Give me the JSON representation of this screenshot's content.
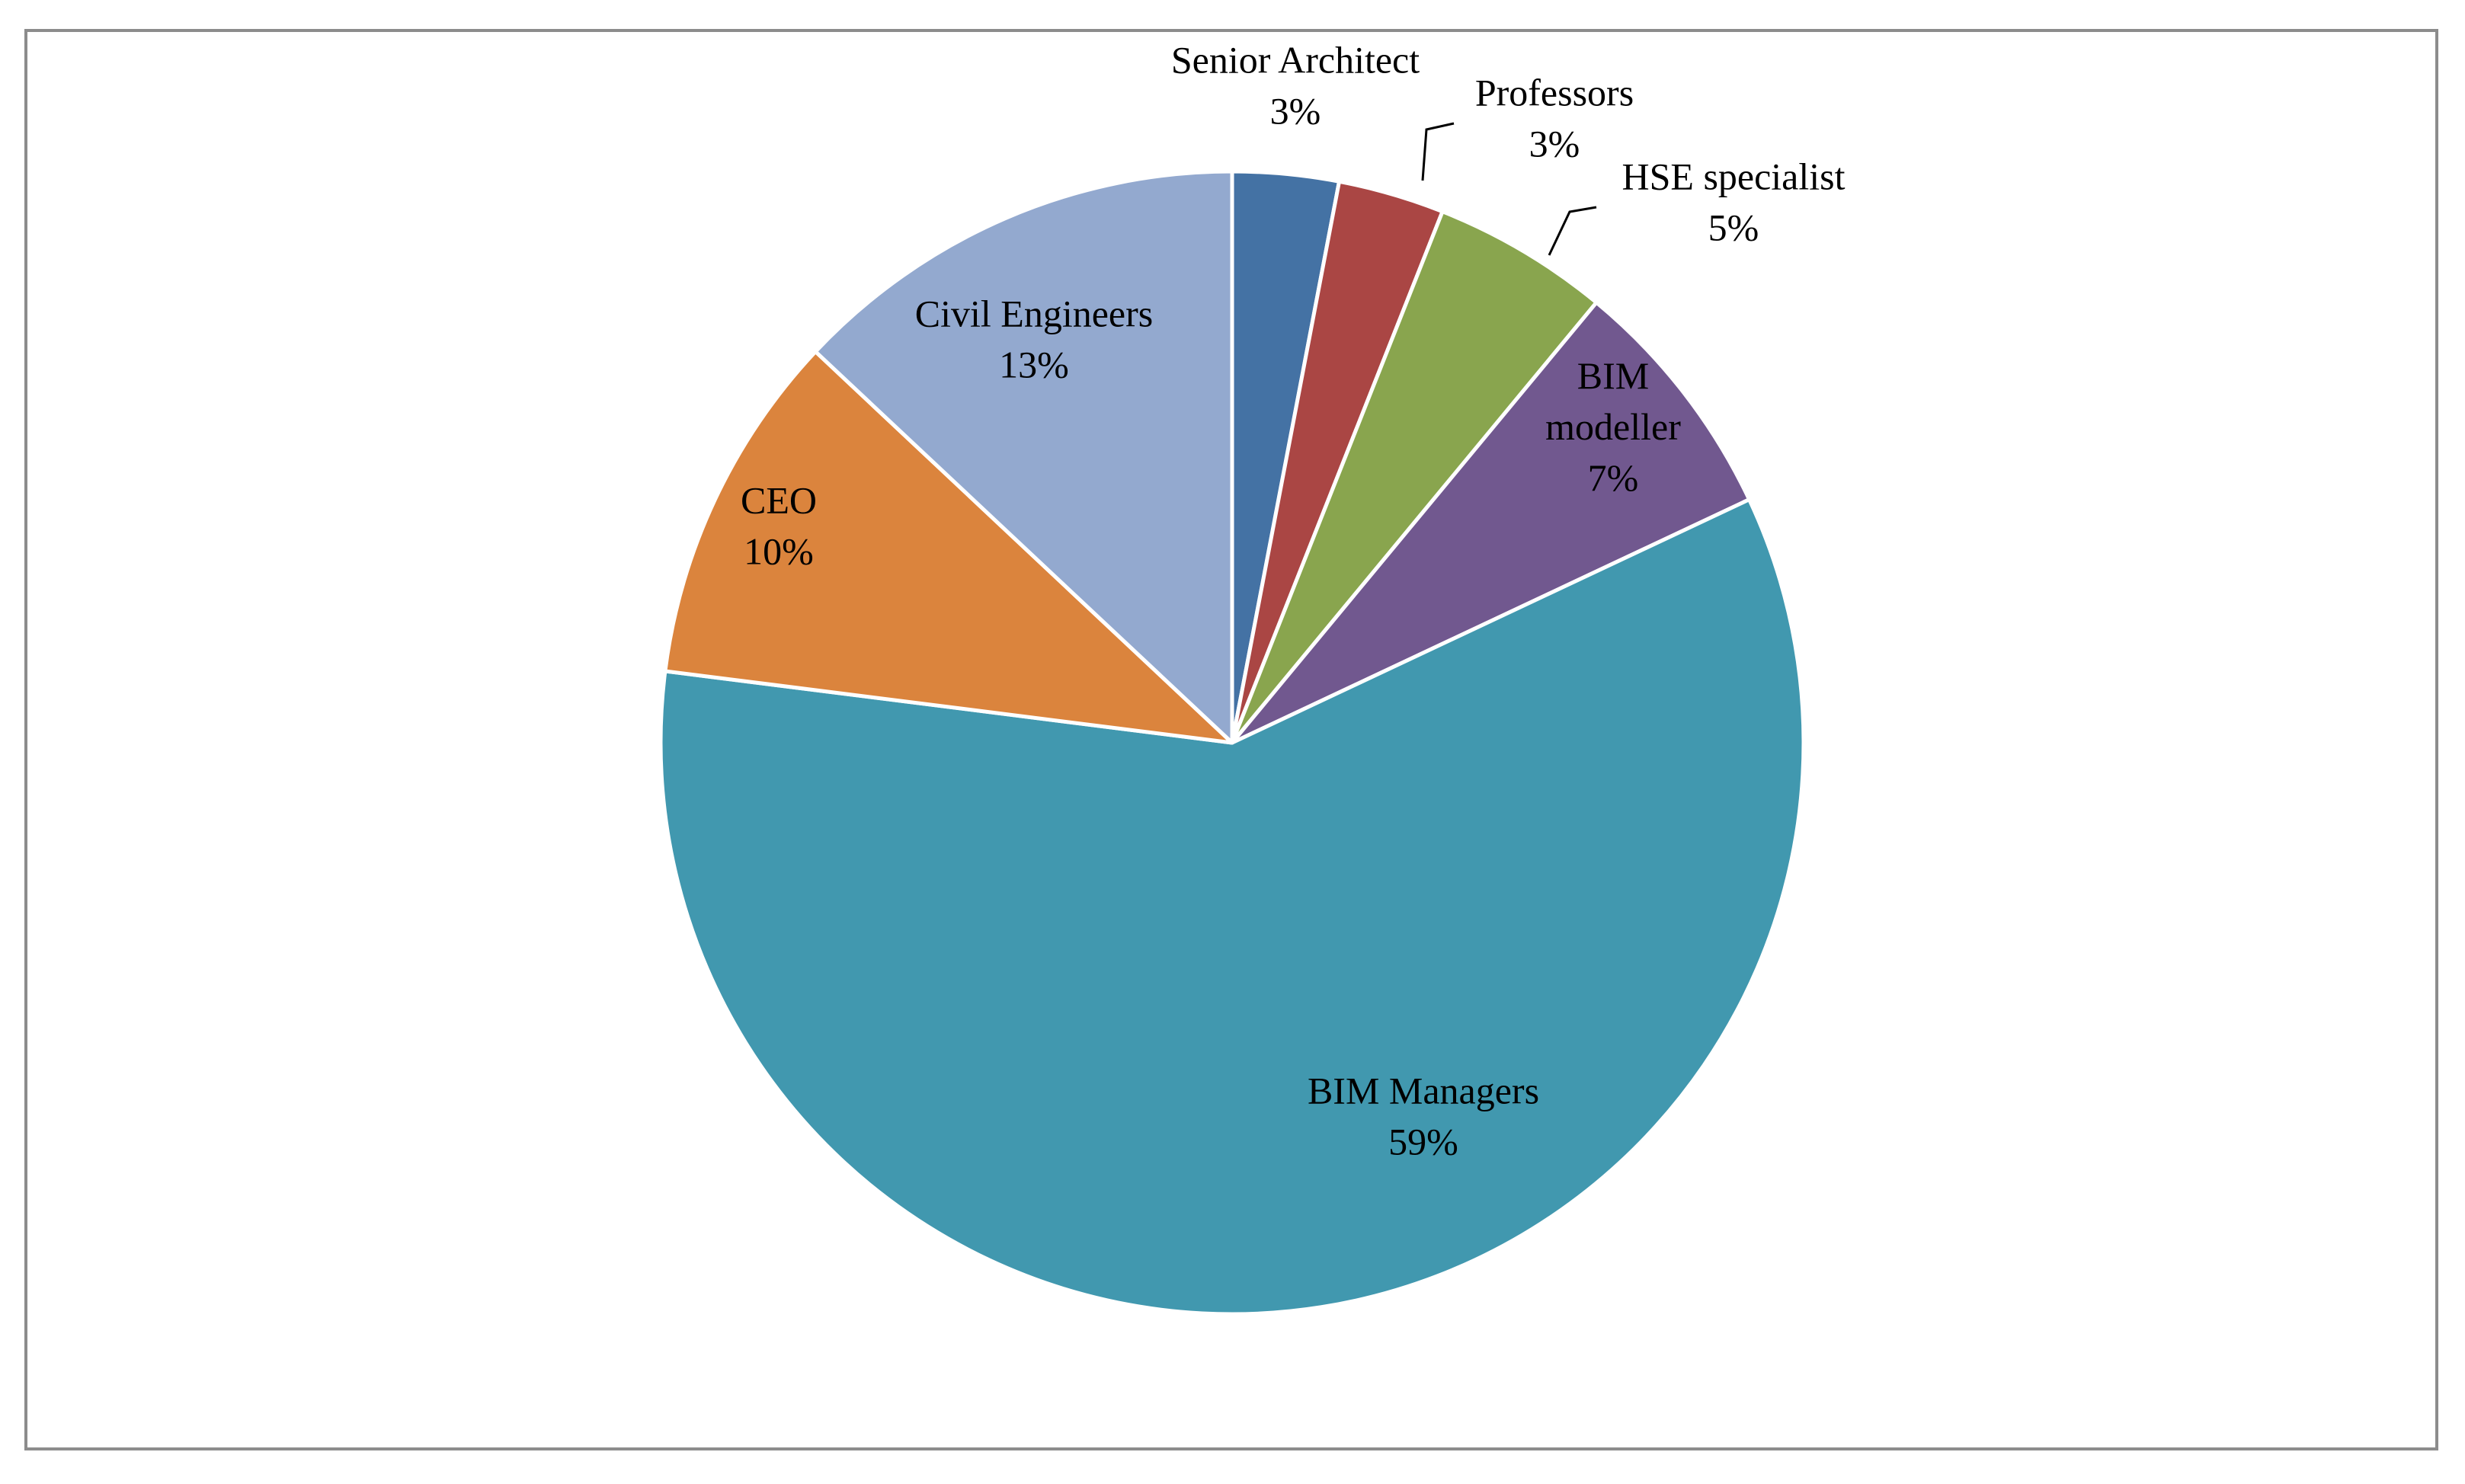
{
  "chart_data": {
    "type": "pie",
    "title": "",
    "start_angle_deg": 0,
    "direction": "clockwise",
    "legend": "none",
    "data_labels": "category-and-percent",
    "slices": [
      {
        "label": "Senior Architect",
        "value": 3,
        "value_label": "3%",
        "color": "#4472a4"
      },
      {
        "label": "Professors",
        "value": 3,
        "value_label": "3%",
        "color": "#aa4644"
      },
      {
        "label": "HSE specialist",
        "value": 5,
        "value_label": "5%",
        "color": "#89a54e"
      },
      {
        "label": "BIM modeller",
        "label_lines": [
          "BIM",
          "modeller"
        ],
        "value": 7,
        "value_label": "7%",
        "color": "#71588f"
      },
      {
        "label": "BIM Managers",
        "value": 59,
        "value_label": "59%",
        "color": "#4198af"
      },
      {
        "label": "CEO",
        "value": 10,
        "value_label": "10%",
        "color": "#db843d"
      },
      {
        "label": "Civil Engineers",
        "value": 13,
        "value_label": "13%",
        "color": "#93a9cf"
      }
    ]
  }
}
